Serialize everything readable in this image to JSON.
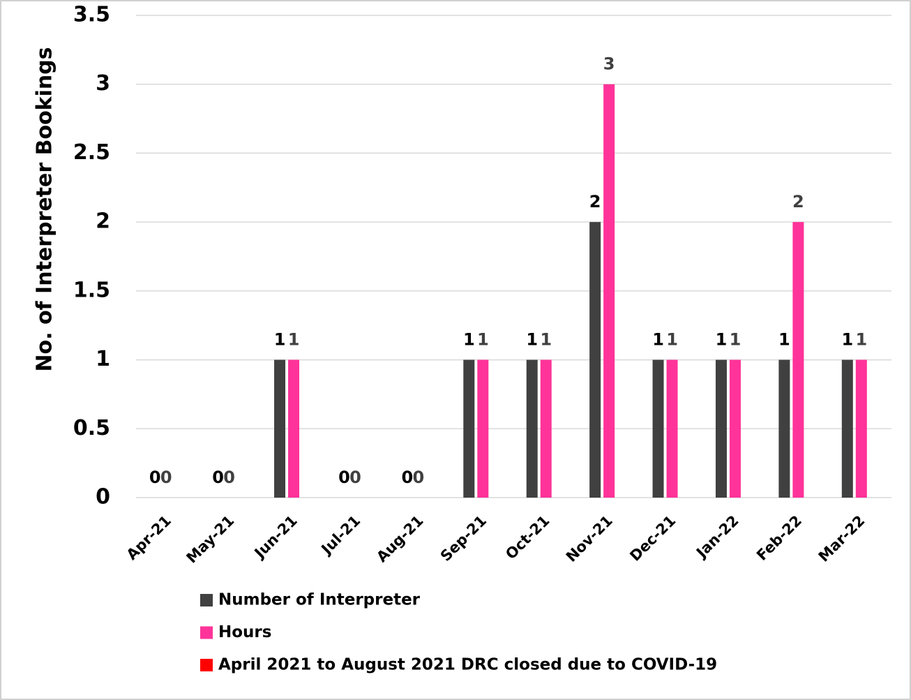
{
  "chart_data": {
    "type": "bar",
    "y_label": "No. of Interpreter Bookings",
    "categories": [
      "Apr-21",
      "May-21",
      "Jun-21",
      "Jul-21",
      "Aug-21",
      "Sep-21",
      "Oct-21",
      "Nov-21",
      "Dec-21",
      "Jan-22",
      "Feb-22",
      "Mar-22"
    ],
    "series": [
      {
        "name": "Number of Interpreter",
        "color": "#404040",
        "label_color": "#000000",
        "values": [
          0,
          0,
          1,
          0,
          0,
          1,
          1,
          2,
          1,
          1,
          1,
          1
        ]
      },
      {
        "name": "Hours",
        "color": "#ff3399",
        "label_color": "#404040",
        "values": [
          0,
          0,
          1,
          0,
          0,
          1,
          1,
          3,
          1,
          1,
          2,
          1
        ]
      },
      {
        "name": "April 2021 to August 2021 DRC closed due to COVID-19",
        "color": "#ff0000"
      }
    ],
    "ylim": [
      0,
      3.5
    ],
    "yticks": [
      0,
      0.5,
      1,
      1.5,
      2,
      2.5,
      3,
      3.5
    ],
    "grid": true,
    "legend": "bottom"
  }
}
